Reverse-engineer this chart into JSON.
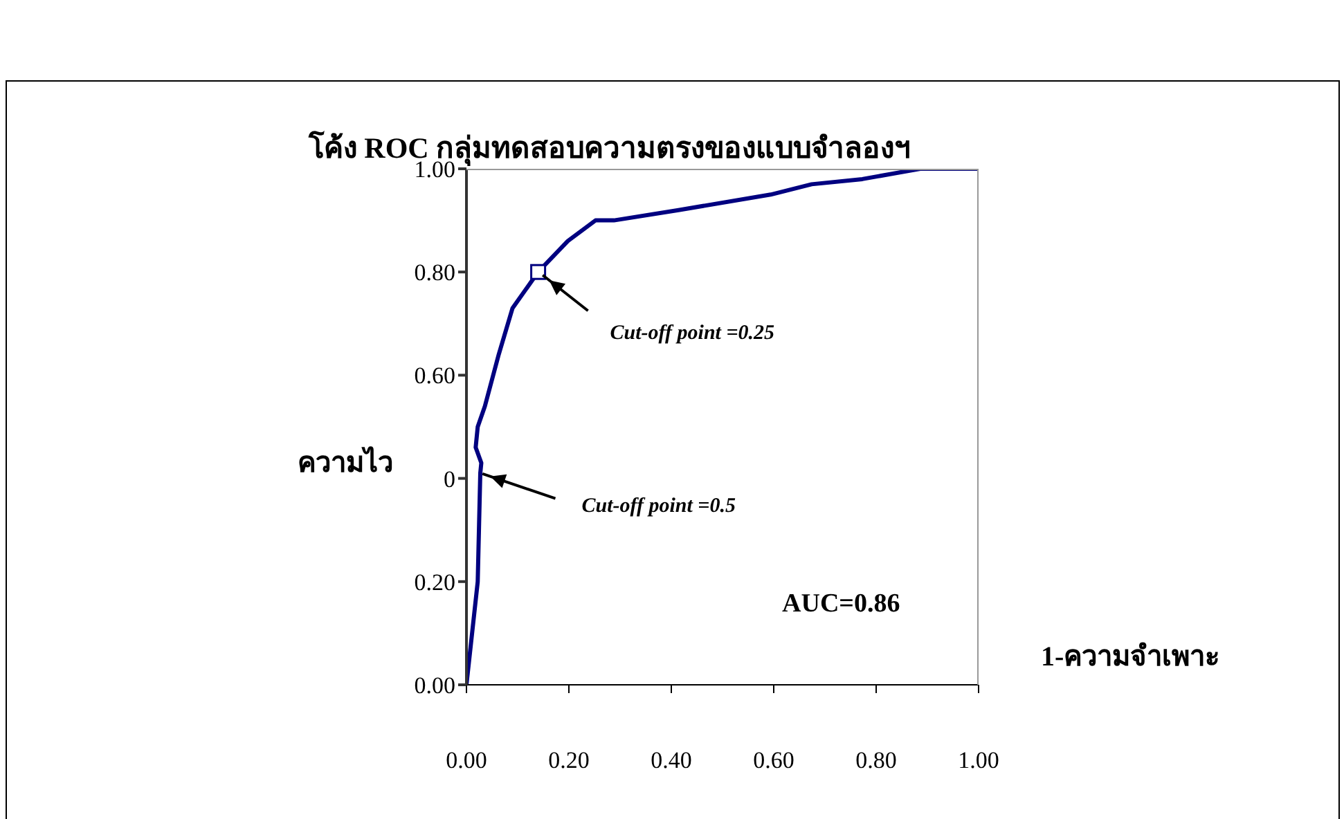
{
  "chart_data": {
    "type": "line",
    "title": "โค้ง ROC กลุ่มทดสอบความตรงของแบบจำลองฯ",
    "xlabel": "1-ความจำเพาะ",
    "ylabel": "ความไว",
    "annotations": [
      {
        "text": "Cut-off point =0.25",
        "x": 0.14,
        "y": 0.8
      },
      {
        "text": "Cut-off point =0.5",
        "x": 0.025,
        "y": 0.42
      },
      "AUC=0.86"
    ],
    "marker": "none",
    "line_style": "solid",
    "series": [
      {
        "color": "#000080",
        "x": [
          0,
          0.022,
          0.027,
          0.029,
          0.018,
          0.022,
          0.036,
          0.063,
          0.09,
          0.14,
          0.198,
          0.252,
          0.288,
          0.414,
          0.594,
          0.674,
          0.773,
          0.886,
          1
        ],
        "values": [
          0,
          0.2,
          0.41,
          0.43,
          0.46,
          0.5,
          0.54,
          0.64,
          0.73,
          0.8,
          0.86,
          0.9,
          0.9,
          0.92,
          0.95,
          0.97,
          0.98,
          1,
          1
        ]
      },
      {
        "type": "scatter",
        "marker": "square",
        "color": "#000080",
        "x": [
          0.14
        ],
        "values": [
          0.8
        ]
      }
    ],
    "xlim": [
      0,
      1
    ],
    "ylim": [
      0,
      1
    ],
    "xticks": [
      {
        "value": 0,
        "label": "0.00"
      },
      {
        "value": 0.2,
        "label": "0.20"
      },
      {
        "value": 0.4,
        "label": "0.40"
      },
      {
        "value": 0.6,
        "label": "0.60"
      },
      {
        "value": 0.8,
        "label": "0.80"
      },
      {
        "value": 1,
        "label": "1.00"
      }
    ],
    "yticks": [
      {
        "value": 0,
        "label": "0.00"
      },
      {
        "value": 0.2,
        "label": "0.20"
      },
      {
        "value": 0.4,
        "label": "0"
      },
      {
        "value": 0.6,
        "label": "0.60"
      },
      {
        "value": 0.8,
        "label": "0.80"
      },
      {
        "value": 1,
        "label": "1.00"
      }
    ]
  }
}
